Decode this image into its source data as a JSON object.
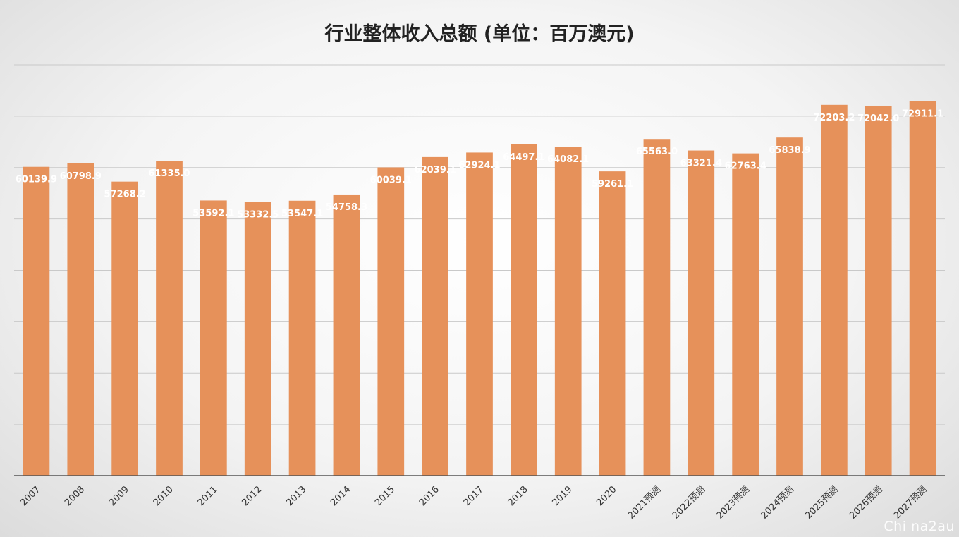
{
  "chart_data": {
    "type": "bar",
    "title": "行业整体收入总额 (单位：百万澳元)",
    "categories": [
      "2007",
      "2008",
      "2009",
      "2010",
      "2011",
      "2012",
      "2013",
      "2014",
      "2015",
      "2016",
      "2017",
      "2018",
      "2019",
      "2020",
      "2021预测",
      "2022预测",
      "2023预测",
      "2024预测",
      "2025预测",
      "2026预测",
      "2027预测"
    ],
    "values": [
      60139.9,
      60798.9,
      57268.2,
      61335.0,
      53592.1,
      53332.5,
      53547.1,
      54758.3,
      60039.1,
      62039.1,
      62924.1,
      64497.1,
      64082.1,
      59261.1,
      65563.0,
      63321.4,
      62763.4,
      65838.9,
      72203.2,
      72042.0,
      72911.1
    ],
    "data_labels": [
      "60139.9",
      "60798.9",
      "57268.2",
      "61335.0",
      "53592.1",
      "53332.5",
      "53547.1",
      "54758.3",
      "60039.1",
      "62039.1",
      "62924.1",
      "64497.1",
      "64082.1",
      "59261.1",
      "65563.0",
      "63321.4",
      "62763.4",
      "65838.9",
      "72203.2",
      "72042.0",
      "72911.1"
    ],
    "ylim": [
      0,
      80000
    ],
    "grid": true,
    "bar_color": "#e6915a"
  },
  "watermark": "Chi na2au"
}
